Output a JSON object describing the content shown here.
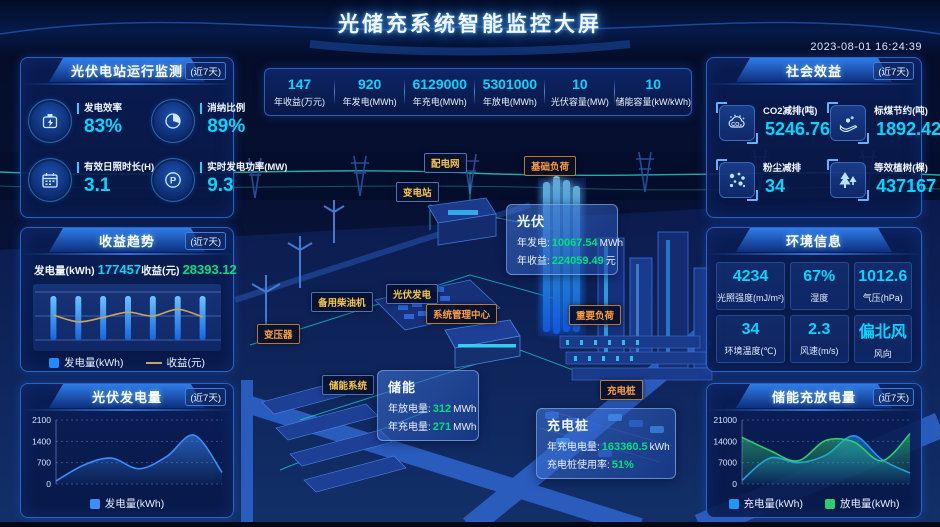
{
  "header": {
    "title": "光储充系统智能监控大屏",
    "timestamp": "2023-08-01 16:24:39"
  },
  "kpi": {
    "items": [
      {
        "value": "147",
        "label": "年收益(万元)"
      },
      {
        "value": "920",
        "label": "年发电(MWh)"
      },
      {
        "value": "6129000",
        "label": "年充电(MWh)"
      },
      {
        "value": "5301000",
        "label": "年放电(MWh)"
      },
      {
        "value": "10",
        "label": "光伏容量(MW)"
      },
      {
        "value": "10",
        "label": "储能容量(kW/kWh)"
      }
    ]
  },
  "left": {
    "pv_monitor": {
      "title": "光伏电站运行监测",
      "tag": "(近7天)",
      "stats": [
        {
          "icon": "battery-icon",
          "label": "发电效率",
          "value": "83%"
        },
        {
          "icon": "pie-chart-icon",
          "label": "消纳比例",
          "value": "89%"
        },
        {
          "icon": "calendar-icon",
          "label": "有效日照时长(H)",
          "value": "3.1"
        },
        {
          "icon": "power-icon",
          "label": "实时发电功率(MW)",
          "value": "9.3"
        }
      ]
    },
    "revenue_trend": {
      "title": "收益趋势",
      "tag": "(近7天)",
      "summary": [
        {
          "label": "发电量(kWh)",
          "value": "177457"
        },
        {
          "label": "收益(元)",
          "value": "28393.12"
        }
      ],
      "chart_data": {
        "type": "bar+line",
        "bar_series": {
          "name": "发电量(kWh)",
          "color": "#1e8cff",
          "values_relative": [
            1,
            1,
            1,
            1,
            1,
            1,
            1
          ]
        },
        "line_series": {
          "name": "收益(元)",
          "color": "#c9a35f",
          "values_relative": [
            0.52,
            0.38,
            0.47,
            0.58,
            0.5,
            0.64,
            0.48
          ]
        }
      }
    },
    "pv_generation": {
      "title": "光伏发电量",
      "tag": "(近7天)",
      "chart_data": {
        "type": "area",
        "series": [
          {
            "name": "发电量(kWh)",
            "color": "#3c8dff",
            "values": [
              100,
              620,
              850,
              500,
              900,
              1600,
              380
            ]
          }
        ],
        "ylim": [
          0,
          2100
        ],
        "yticks": [
          0,
          700,
          1400,
          2100
        ]
      }
    }
  },
  "right": {
    "social": {
      "title": "社会效益",
      "tag": "(近7天)",
      "stats": [
        {
          "icon": "co2-icon",
          "label": "CO2减排(吨)",
          "value": "5246.76"
        },
        {
          "icon": "coal-icon",
          "label": "标煤节约(吨)",
          "value": "1892.42"
        },
        {
          "icon": "dust-icon",
          "label": "粉尘减排",
          "value": "34"
        },
        {
          "icon": "tree-icon",
          "label": "等效植树(棵)",
          "value": "437167"
        }
      ]
    },
    "environment": {
      "title": "环境信息",
      "cells": [
        {
          "value": "4234",
          "label": "光照强度(mJ/m²)"
        },
        {
          "value": "67%",
          "label": "湿度"
        },
        {
          "value": "1012.6",
          "label": "气压(hPa)"
        },
        {
          "value": "34",
          "label": "环境温度(℃)"
        },
        {
          "value": "2.3",
          "label": "风速(m/s)"
        },
        {
          "value": "偏北风",
          "label": "风向"
        }
      ]
    },
    "storage": {
      "title": "储能充放电量",
      "tag": "(近7天)",
      "chart_data": {
        "type": "area",
        "series": [
          {
            "name": "充电量(kWh)",
            "color": "#2196f3",
            "values": [
              1200,
              8500,
              7000,
              9500,
              15800,
              8000,
              3600
            ]
          },
          {
            "name": "放电量(kWh)",
            "color": "#2ecc71",
            "values": [
              15300,
              11000,
              7600,
              14300,
              13800,
              7600,
              16500
            ]
          }
        ],
        "ylim": [
          0,
          21000
        ],
        "yticks": [
          0,
          7000,
          14000,
          21000
        ]
      }
    }
  },
  "scene": {
    "badges": [
      {
        "label": "配电网"
      },
      {
        "label": "变电站"
      },
      {
        "label": "基础负荷"
      },
      {
        "label": "备用柴油机"
      },
      {
        "label": "光伏发电"
      },
      {
        "label": "系统管理中心"
      },
      {
        "label": "重要负荷"
      },
      {
        "label": "变压器"
      },
      {
        "label": "储能系统"
      },
      {
        "label": "充电桩"
      }
    ],
    "tooltips": {
      "pv": {
        "title": "光伏",
        "rows": [
          {
            "label": "年发电:",
            "value": "10067.54",
            "unit": "MWh"
          },
          {
            "label": "年收益:",
            "value": "224059.49",
            "unit": "元"
          }
        ]
      },
      "storage": {
        "title": "储能",
        "rows": [
          {
            "label": "年放电量:",
            "value": "312",
            "unit": "MWh"
          },
          {
            "label": "年充电量:",
            "value": "271",
            "unit": "MWh"
          }
        ]
      },
      "charger": {
        "title": "充电桩",
        "rows": [
          {
            "label": "年充电电量:",
            "value": "163360.5",
            "unit": "kWh"
          },
          {
            "label": "充电桩使用率:",
            "value": "51%",
            "unit": ""
          }
        ]
      }
    }
  },
  "colors": {
    "accent_cyan": "#00d7fe",
    "accent_green": "#00e07f",
    "bar_blue": "#1e8cff",
    "line_tan": "#c9a35f",
    "charge_blue": "#2196f3",
    "discharge_green": "#2ecc71"
  }
}
